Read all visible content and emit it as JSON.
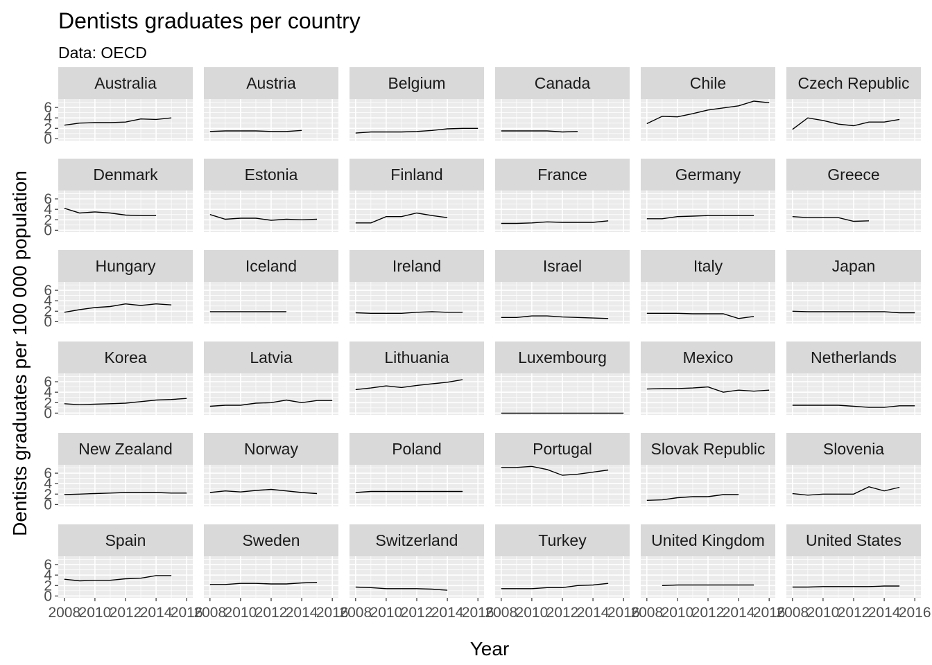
{
  "chart_data": {
    "type": "line",
    "title": "Dentists graduates per country",
    "subtitle": "Data: OECD",
    "xlabel": "Year",
    "ylabel": "Dentists graduates per 100 000 population",
    "xlim": [
      2007.6,
      2016.4
    ],
    "ylim": [
      -0.35,
      7.6
    ],
    "x_ticks": [
      2008,
      2010,
      2012,
      2014,
      2016
    ],
    "x_tick_labels": [
      "2008",
      "2010",
      "2012",
      "2014",
      "2016"
    ],
    "y_ticks": [
      0,
      2,
      4,
      6
    ],
    "y_tick_labels": [
      "0",
      "2",
      "4",
      "6"
    ],
    "grid": true,
    "facet_columns": 6,
    "colors": {
      "panel_background": "#ebebeb",
      "strip_background": "#d9d9d9",
      "grid": "#ffffff",
      "line": "#000000",
      "tick_text": "#4d4d4d",
      "strip_text": "#1a1a1a"
    },
    "panels": [
      {
        "name": "Australia",
        "x": [
          2008,
          2009,
          2010,
          2011,
          2012,
          2013,
          2014,
          2015
        ],
        "y": [
          2.6,
          3.0,
          3.1,
          3.1,
          3.2,
          3.8,
          3.7,
          4.0
        ]
      },
      {
        "name": "Austria",
        "x": [
          2008,
          2009,
          2010,
          2011,
          2012,
          2013,
          2014
        ],
        "y": [
          1.4,
          1.5,
          1.5,
          1.5,
          1.4,
          1.4,
          1.6
        ]
      },
      {
        "name": "Belgium",
        "x": [
          2008,
          2009,
          2010,
          2011,
          2012,
          2013,
          2014,
          2015,
          2016
        ],
        "y": [
          1.1,
          1.3,
          1.3,
          1.3,
          1.4,
          1.6,
          1.9,
          2.0,
          2.0
        ]
      },
      {
        "name": "Canada",
        "x": [
          2008,
          2009,
          2010,
          2011,
          2012,
          2013
        ],
        "y": [
          1.5,
          1.5,
          1.5,
          1.5,
          1.3,
          1.4
        ]
      },
      {
        "name": "Chile",
        "x": [
          2008,
          2009,
          2010,
          2011,
          2012,
          2013,
          2014,
          2015,
          2016
        ],
        "y": [
          2.9,
          4.3,
          4.2,
          4.8,
          5.5,
          5.9,
          6.3,
          7.2,
          6.9
        ]
      },
      {
        "name": "Czech Republic",
        "x": [
          2008,
          2009,
          2010,
          2011,
          2012,
          2013,
          2014,
          2015
        ],
        "y": [
          1.8,
          4.0,
          3.5,
          2.8,
          2.5,
          3.2,
          3.2,
          3.7
        ]
      },
      {
        "name": "Denmark",
        "x": [
          2008,
          2009,
          2010,
          2011,
          2012,
          2013,
          2014
        ],
        "y": [
          4.2,
          3.3,
          3.5,
          3.3,
          2.9,
          2.8,
          2.8
        ]
      },
      {
        "name": "Estonia",
        "x": [
          2008,
          2009,
          2010,
          2011,
          2012,
          2013,
          2014,
          2015
        ],
        "y": [
          3.0,
          2.1,
          2.3,
          2.3,
          1.9,
          2.1,
          2.0,
          2.1
        ]
      },
      {
        "name": "Finland",
        "x": [
          2008,
          2009,
          2010,
          2011,
          2012,
          2013,
          2014
        ],
        "y": [
          1.4,
          1.4,
          2.6,
          2.6,
          3.3,
          2.8,
          2.4
        ]
      },
      {
        "name": "France",
        "x": [
          2008,
          2009,
          2010,
          2011,
          2012,
          2013,
          2014,
          2015
        ],
        "y": [
          1.3,
          1.3,
          1.4,
          1.6,
          1.5,
          1.5,
          1.5,
          1.8
        ]
      },
      {
        "name": "Germany",
        "x": [
          2008,
          2009,
          2010,
          2011,
          2012,
          2013,
          2014,
          2015
        ],
        "y": [
          2.2,
          2.2,
          2.6,
          2.7,
          2.8,
          2.8,
          2.8,
          2.8
        ]
      },
      {
        "name": "Greece",
        "x": [
          2008,
          2009,
          2010,
          2011,
          2012,
          2013
        ],
        "y": [
          2.6,
          2.4,
          2.4,
          2.4,
          1.7,
          1.8
        ]
      },
      {
        "name": "Hungary",
        "x": [
          2008,
          2009,
          2010,
          2011,
          2012,
          2013,
          2014,
          2015
        ],
        "y": [
          1.8,
          2.3,
          2.7,
          2.9,
          3.4,
          3.1,
          3.4,
          3.2
        ]
      },
      {
        "name": "Iceland",
        "x": [
          2008,
          2009,
          2010,
          2011,
          2012,
          2013
        ],
        "y": [
          1.9,
          1.9,
          1.9,
          1.9,
          1.9,
          1.9
        ]
      },
      {
        "name": "Ireland",
        "x": [
          2008,
          2009,
          2010,
          2011,
          2012,
          2013,
          2014,
          2015
        ],
        "y": [
          1.7,
          1.6,
          1.6,
          1.6,
          1.8,
          1.9,
          1.8,
          1.8
        ]
      },
      {
        "name": "Israel",
        "x": [
          2008,
          2009,
          2010,
          2011,
          2012,
          2013,
          2014,
          2015
        ],
        "y": [
          0.8,
          0.8,
          1.1,
          1.1,
          0.9,
          0.8,
          0.7,
          0.6
        ]
      },
      {
        "name": "Italy",
        "x": [
          2008,
          2009,
          2010,
          2011,
          2012,
          2013,
          2014,
          2015
        ],
        "y": [
          1.6,
          1.6,
          1.6,
          1.5,
          1.5,
          1.5,
          0.6,
          1.0
        ]
      },
      {
        "name": "Japan",
        "x": [
          2008,
          2009,
          2010,
          2011,
          2012,
          2013,
          2014,
          2015,
          2016
        ],
        "y": [
          2.0,
          1.9,
          1.9,
          1.9,
          1.9,
          1.9,
          1.9,
          1.7,
          1.7
        ]
      },
      {
        "name": "Korea",
        "x": [
          2008,
          2009,
          2010,
          2011,
          2012,
          2013,
          2014,
          2015,
          2016
        ],
        "y": [
          1.8,
          1.6,
          1.7,
          1.8,
          1.9,
          2.2,
          2.5,
          2.6,
          2.8
        ]
      },
      {
        "name": "Latvia",
        "x": [
          2008,
          2009,
          2010,
          2011,
          2012,
          2013,
          2014,
          2015,
          2016
        ],
        "y": [
          1.3,
          1.5,
          1.5,
          1.9,
          2.0,
          2.5,
          2.0,
          2.4,
          2.4
        ]
      },
      {
        "name": "Lithuania",
        "x": [
          2008,
          2009,
          2010,
          2011,
          2012,
          2013,
          2014,
          2015
        ],
        "y": [
          4.5,
          4.8,
          5.2,
          4.9,
          5.3,
          5.6,
          5.9,
          6.4
        ]
      },
      {
        "name": "Luxembourg",
        "x": [
          2008,
          2009,
          2010,
          2011,
          2012,
          2013,
          2014,
          2015,
          2016
        ],
        "y": [
          0,
          0,
          0,
          0,
          0,
          0,
          0,
          0,
          0
        ]
      },
      {
        "name": "Mexico",
        "x": [
          2008,
          2009,
          2010,
          2011,
          2012,
          2013,
          2014,
          2015,
          2016
        ],
        "y": [
          4.6,
          4.7,
          4.7,
          4.8,
          5.0,
          4.0,
          4.4,
          4.2,
          4.4
        ]
      },
      {
        "name": "Netherlands",
        "x": [
          2008,
          2009,
          2010,
          2011,
          2012,
          2013,
          2014,
          2015,
          2016
        ],
        "y": [
          1.5,
          1.5,
          1.5,
          1.5,
          1.3,
          1.1,
          1.1,
          1.4,
          1.4
        ]
      },
      {
        "name": "New Zealand",
        "x": [
          2008,
          2009,
          2010,
          2011,
          2012,
          2013,
          2014,
          2015,
          2016
        ],
        "y": [
          1.9,
          2.0,
          2.1,
          2.2,
          2.3,
          2.3,
          2.3,
          2.2,
          2.2
        ]
      },
      {
        "name": "Norway",
        "x": [
          2008,
          2009,
          2010,
          2011,
          2012,
          2013,
          2014,
          2015
        ],
        "y": [
          2.3,
          2.6,
          2.4,
          2.7,
          2.9,
          2.6,
          2.3,
          2.1
        ]
      },
      {
        "name": "Poland",
        "x": [
          2008,
          2009,
          2010,
          2011,
          2012,
          2013,
          2014,
          2015
        ],
        "y": [
          2.3,
          2.5,
          2.5,
          2.5,
          2.5,
          2.5,
          2.5,
          2.5
        ]
      },
      {
        "name": "Portugal",
        "x": [
          2008,
          2009,
          2010,
          2011,
          2012,
          2013,
          2014,
          2015
        ],
        "y": [
          7.1,
          7.1,
          7.3,
          6.7,
          5.6,
          5.8,
          6.2,
          6.6
        ]
      },
      {
        "name": "Slovak Republic",
        "x": [
          2008,
          2009,
          2010,
          2011,
          2012,
          2013,
          2014
        ],
        "y": [
          0.8,
          0.9,
          1.3,
          1.5,
          1.5,
          1.9,
          1.9
        ]
      },
      {
        "name": "Slovenia",
        "x": [
          2008,
          2009,
          2010,
          2011,
          2012,
          2013,
          2014,
          2015
        ],
        "y": [
          2.1,
          1.8,
          2.0,
          2.0,
          2.0,
          3.4,
          2.6,
          3.3
        ]
      },
      {
        "name": "Spain",
        "x": [
          2008,
          2009,
          2010,
          2011,
          2012,
          2013,
          2014,
          2015
        ],
        "y": [
          3.2,
          2.9,
          3.0,
          3.0,
          3.3,
          3.4,
          3.9,
          3.9
        ]
      },
      {
        "name": "Sweden",
        "x": [
          2008,
          2009,
          2010,
          2011,
          2012,
          2013,
          2014,
          2015
        ],
        "y": [
          2.2,
          2.2,
          2.4,
          2.4,
          2.3,
          2.3,
          2.5,
          2.6
        ]
      },
      {
        "name": "Switzerland",
        "x": [
          2008,
          2009,
          2010,
          2011,
          2012,
          2013,
          2014
        ],
        "y": [
          1.7,
          1.6,
          1.4,
          1.4,
          1.4,
          1.3,
          1.1
        ]
      },
      {
        "name": "Turkey",
        "x": [
          2008,
          2009,
          2010,
          2011,
          2012,
          2013,
          2014,
          2015
        ],
        "y": [
          1.4,
          1.4,
          1.4,
          1.6,
          1.6,
          2.0,
          2.1,
          2.4
        ]
      },
      {
        "name": "United Kingdom",
        "x": [
          2009,
          2010,
          2011,
          2012,
          2013,
          2014,
          2015
        ],
        "y": [
          2.0,
          2.1,
          2.1,
          2.1,
          2.1,
          2.1,
          2.1
        ]
      },
      {
        "name": "United States",
        "x": [
          2008,
          2009,
          2010,
          2011,
          2012,
          2013,
          2014,
          2015
        ],
        "y": [
          1.7,
          1.7,
          1.8,
          1.8,
          1.8,
          1.8,
          1.9,
          1.9
        ]
      }
    ]
  }
}
